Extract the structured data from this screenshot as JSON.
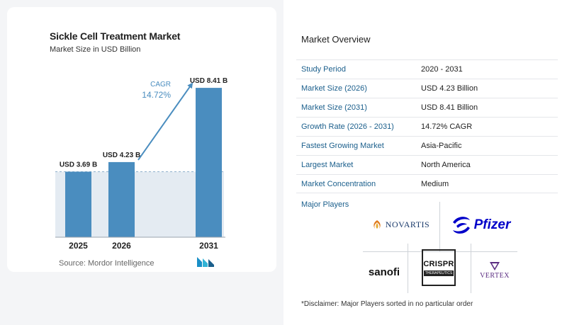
{
  "chart_data": {
    "type": "bar",
    "title": "Sickle Cell Treatment Market",
    "subtitle": "Market Size in USD Billion",
    "categories": [
      "2025",
      "2026",
      "2031"
    ],
    "values": [
      3.69,
      4.23,
      8.41
    ],
    "data_labels": [
      "USD 3.69 B",
      "USD 4.23 B",
      "USD 8.41 B"
    ],
    "annotation": {
      "label": "CAGR",
      "value": "14.72%"
    },
    "bar_color": "#4a8dbf",
    "baseline_band_color": "#e4ebf2"
  },
  "source": "Source:  Mordor Intelligence",
  "overview": {
    "title": "Market Overview",
    "rows": [
      {
        "label": "Study Period",
        "value": "2020 - 2031"
      },
      {
        "label": "Market Size (2026)",
        "value": "USD 4.23 Billion"
      },
      {
        "label": "Market Size (2031)",
        "value": "USD 8.41 Billion"
      },
      {
        "label": "Growth Rate (2026 - 2031)",
        "value": "14.72% CAGR"
      },
      {
        "label": "Fastest Growing Market",
        "value": "Asia-Pacific"
      },
      {
        "label": "Largest Market",
        "value": "North America"
      },
      {
        "label": "Market Concentration",
        "value": "Medium"
      }
    ]
  },
  "players": {
    "title": "Major Players",
    "novartis": "NOVARTIS",
    "pfizer": "Pfizer",
    "sanofi": "sanofi",
    "crispr": "CRISPR",
    "crispr_sub": "THERAPEUTICS",
    "vertex": "VERTEX"
  },
  "disclaimer": "*Disclaimer: Major Players sorted in no particular order",
  "colors": {
    "accent": "#1b5f8c",
    "bar": "#4a8dbf",
    "pfizer": "#0000c9"
  }
}
